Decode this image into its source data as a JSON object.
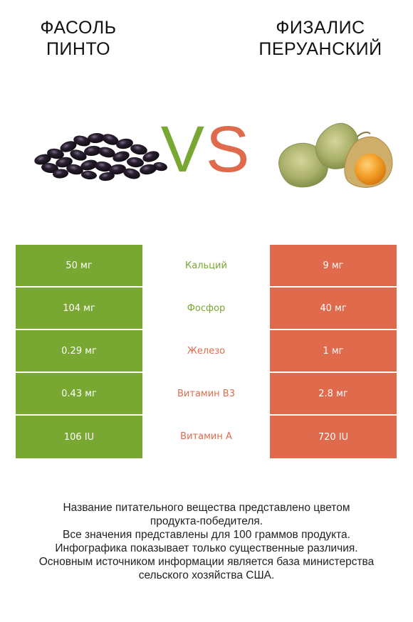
{
  "header": {
    "left_title_line1": "ФАСОЛЬ",
    "left_title_line2": "ПИНТО",
    "right_title_line1": "ФИЗАЛИС",
    "right_title_line2": "ПЕРУАНСКИЙ",
    "vs_v": "V",
    "vs_s": "S"
  },
  "colors": {
    "left_accent": "#79a832",
    "right_accent": "#e06b4c"
  },
  "table": {
    "rows": [
      {
        "left": "50 мг",
        "nutrient": "Кальций",
        "right": "9 мг",
        "winner": "left"
      },
      {
        "left": "104 мг",
        "nutrient": "Фосфор",
        "right": "40 мг",
        "winner": "left"
      },
      {
        "left": "0.29 мг",
        "nutrient": "Железо",
        "right": "1 мг",
        "winner": "right"
      },
      {
        "left": "0.43 мг",
        "nutrient": "Витамин B3",
        "right": "2.8 мг",
        "winner": "right"
      },
      {
        "left": "106 IU",
        "nutrient": "Витамин A",
        "right": "720 IU",
        "winner": "right"
      }
    ]
  },
  "footer": {
    "line1": "Название питательного вещества представлено цветом",
    "line2": "продукта-победителя.",
    "line3": "Все значения представлены для 100 граммов продукта.",
    "line4": "Инфографика показывает только существенные различия.",
    "line5": "Основным источником информации является база министерства",
    "line6": "сельского хозяйства США."
  }
}
